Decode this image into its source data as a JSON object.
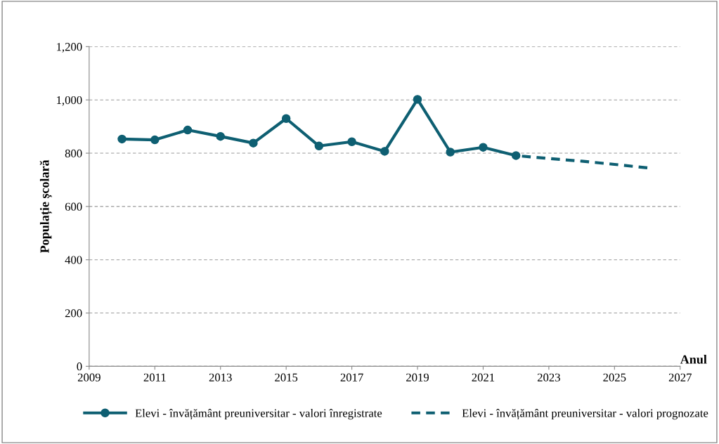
{
  "chart_data": {
    "type": "line",
    "xlabel": "Anul",
    "ylabel": "Populație școlară",
    "xlim": [
      2009,
      2027
    ],
    "xticks": [
      2009,
      2011,
      2013,
      2015,
      2017,
      2019,
      2021,
      2023,
      2025,
      2027
    ],
    "ylim": [
      0,
      1200
    ],
    "yticks": [
      {
        "value": 0,
        "label": "0"
      },
      {
        "value": 200,
        "label": "200"
      },
      {
        "value": 400,
        "label": "400"
      },
      {
        "value": 600,
        "label": "600"
      },
      {
        "value": 800,
        "label": "800"
      },
      {
        "value": 1000,
        "label": "1,000"
      },
      {
        "value": 1200,
        "label": "1,200"
      }
    ],
    "grid": "y",
    "legend": "bottom",
    "series": [
      {
        "name": "Elevi - învățământ preuniversitar - valori înregistrate",
        "color": "#0e5f72",
        "marker": "circle",
        "line_style": "solid",
        "x": [
          2010,
          2011,
          2012,
          2013,
          2014,
          2015,
          2016,
          2017,
          2018,
          2019,
          2020,
          2021,
          2022
        ],
        "values": [
          853,
          850,
          887,
          863,
          838,
          930,
          827,
          843,
          807,
          1002,
          804,
          822,
          791
        ]
      },
      {
        "name": "Elevi - învățământ preuniversitar - valori prognozate",
        "color": "#0e5f72",
        "marker": "none",
        "line_style": "dashed",
        "x": [
          2022,
          2023,
          2024,
          2025,
          2026
        ],
        "values": [
          791,
          780,
          770,
          758,
          745
        ]
      }
    ]
  }
}
